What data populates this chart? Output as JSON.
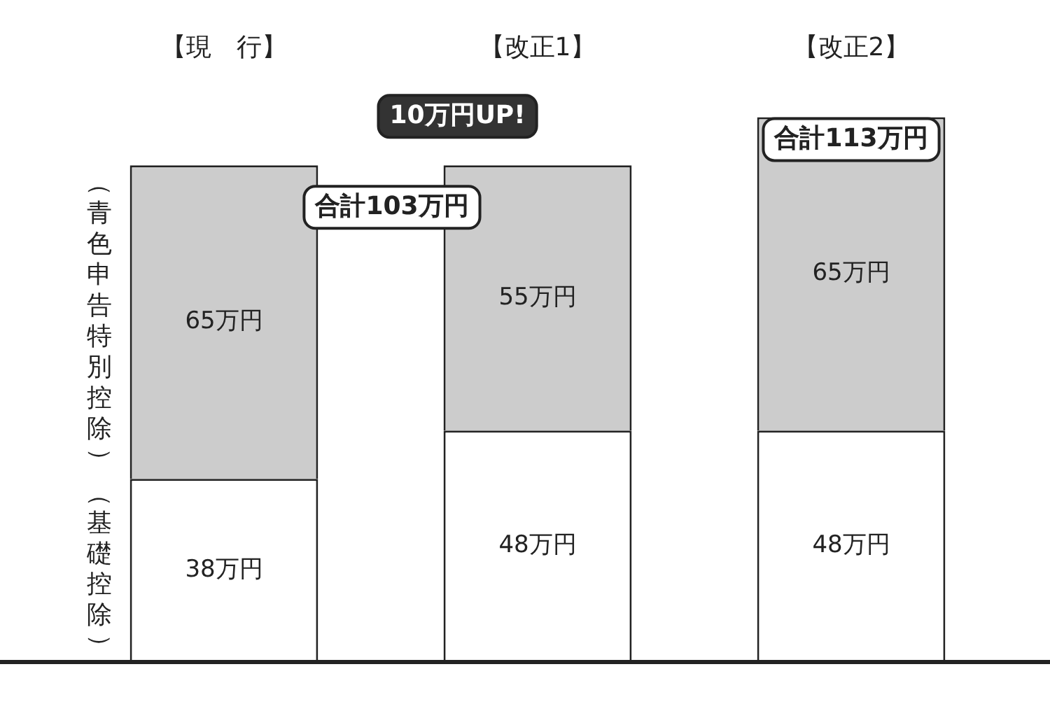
{
  "chart_data": {
    "type": "bar",
    "stacked": true,
    "categories": [
      "【現　行】",
      "【改正1】",
      "【改正2】"
    ],
    "series": [
      {
        "name": "（基礎控除）",
        "color": "#ffffff",
        "values": [
          38,
          48,
          48
        ],
        "value_labels": [
          "38万円",
          "48万円",
          "48万円"
        ]
      },
      {
        "name": "（青色申告特別控除）",
        "color": "#cccccc",
        "values": [
          65,
          55,
          65
        ],
        "value_labels": [
          "65万円",
          "55万円",
          "65万円"
        ]
      }
    ],
    "annotations": [
      "合計103万円",
      "10万円UP!",
      "合計113万円"
    ],
    "legend": false,
    "grid": false
  }
}
